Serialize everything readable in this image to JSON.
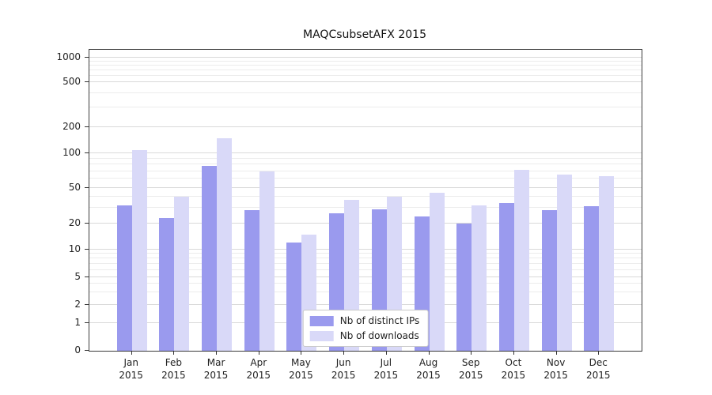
{
  "figure": {
    "background": "#ffffff"
  },
  "chart_data": {
    "type": "bar",
    "title": "MAQCsubsetAFX 2015",
    "categories": [
      "Jan 2015",
      "Feb 2015",
      "Mar 2015",
      "Apr 2015",
      "May 2015",
      "Jun 2015",
      "Jul 2015",
      "Aug 2015",
      "Sep 2015",
      "Oct 2015",
      "Nov 2015",
      "Dec 2015"
    ],
    "series": [
      {
        "name": "Nb of distinct IPs",
        "color": "#9a9aee",
        "values": [
          32,
          23,
          78,
          28,
          12,
          26,
          29,
          24,
          20,
          34,
          28,
          31
        ]
      },
      {
        "name": "Nb of downloads",
        "color": "#d9d9f8",
        "values": [
          110,
          40,
          150,
          70,
          15,
          37,
          40,
          44,
          32,
          72,
          65,
          63
        ]
      }
    ],
    "yscale": "symlog",
    "ylim": [
      0,
      1000
    ],
    "yticks": [
      0,
      1,
      2,
      5,
      10,
      20,
      50,
      100,
      200,
      500,
      1000
    ],
    "y_minor_gridlines": [
      3,
      4,
      6,
      7,
      8,
      9,
      30,
      40,
      60,
      70,
      80,
      90,
      300,
      400,
      600,
      700,
      800,
      900
    ],
    "grid": true,
    "legend_position": "lower center"
  }
}
